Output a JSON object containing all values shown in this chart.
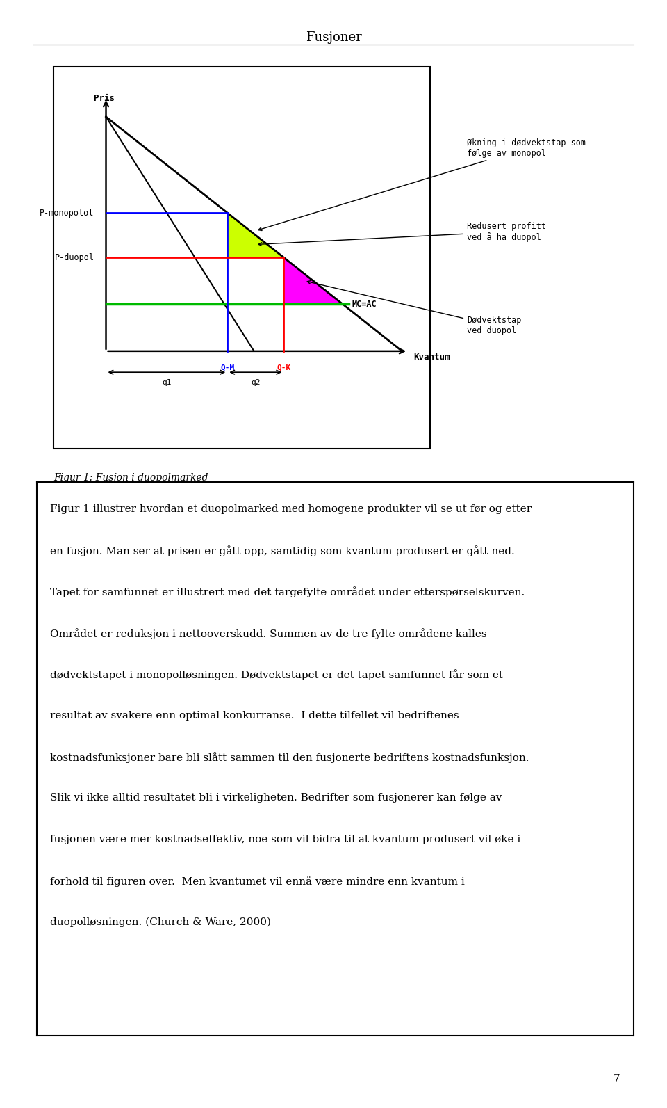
{
  "title": "Fusjoner",
  "fig_caption": "Figur 1: Fusjon i duopolmarked",
  "y_label": "Pris",
  "x_label": "Kvantum",
  "mc": 0.2,
  "qm": 0.41,
  "qk": 0.6,
  "annotation_1": "Økning i dødvektstap som\nfølge av monopol",
  "annotation_2": "Redusert profitt\nved å ha duopol",
  "annotation_3": "Dødvektstap\nved duopol",
  "annotation_4": "MC=AC",
  "annotation_5": "Q-M",
  "annotation_6": "Q-K",
  "annotation_7": "q1",
  "annotation_8": "q2",
  "body_lines": [
    "Figur 1 illustrer hvordan et duopolmarked med homogene produkter vil se ut før og etter",
    "en fusjon. Man ser at prisen er gått opp, samtidig som kvantum produsert er gått ned.",
    "Tapet for samfunnet er illustrert med det fargefylte området under etterspørselskurven.",
    "Området er reduksjon i nettooverskudd. Summen av de tre fylte områdene kalles",
    "dødvektstapet i monopolløsningen. Dødvektstapet er det tapet samfunnet får som et",
    "resultat av svakere enn optimal konkurranse.  I dette tilfellet vil bedriftenes",
    "kostnadsfunksjoner bare bli slått sammen til den fusjonerte bedriftens kostnadsfunksjon.",
    "Slik vi ikke alltid resultatet bli i virkeligheten. Bedrifter som fusjonerer kan følge av",
    "fusjonen være mer kostnadseffektiv, noe som vil bidra til at kvantum produsert vil øke i",
    "forhold til figuren over.  Men kvantumet vil ennå være mindre enn kvantum i",
    "duopolløsningen. (Church & Ware, 2000)"
  ],
  "page_number": "7",
  "yellow_color": "#CCFF00",
  "magenta_color": "#FF00FF",
  "blue_line_color": "#0000FF",
  "red_line_color": "#FF0000",
  "green_line_color": "#00BB00"
}
